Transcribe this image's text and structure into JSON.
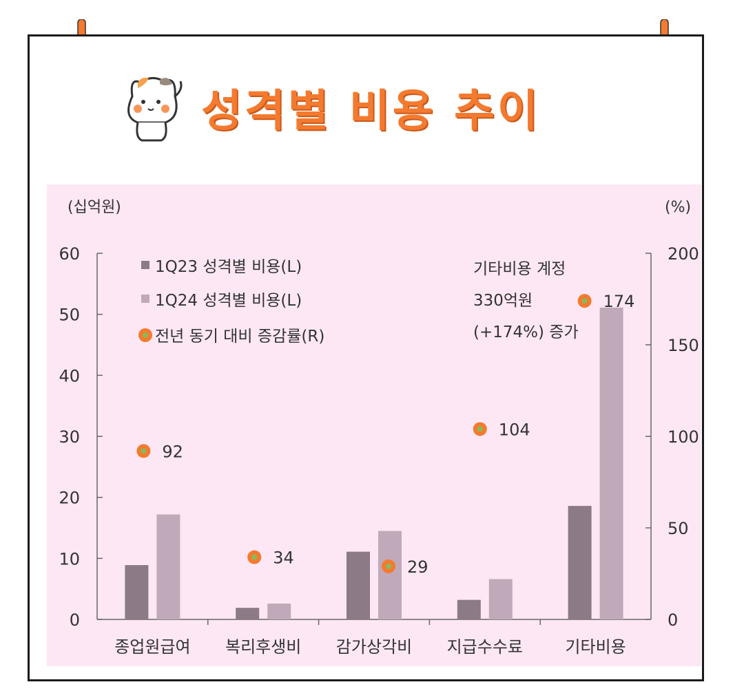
{
  "header": {
    "title": "성격별 비용 추이"
  },
  "chart_data": {
    "type": "bar",
    "categories": [
      "종업원급여",
      "복리후생비",
      "감가상각비",
      "지급수수료",
      "기타비용"
    ],
    "series": [
      {
        "name": "1Q23 성격별 비용(L)",
        "values": [
          8.9,
          1.9,
          11.1,
          3.2,
          18.6
        ],
        "color": "#8c7a86",
        "axis": "left"
      },
      {
        "name": "1Q24 성격별 비용(L)",
        "values": [
          17.2,
          2.6,
          14.5,
          6.6,
          51.1
        ],
        "color": "#c0a9b8",
        "axis": "left"
      },
      {
        "name": "전년 동기 대비 증감률(R)",
        "values": [
          92,
          34,
          29,
          104,
          174
        ],
        "type": "scatter",
        "color": "#f47a2f",
        "axis": "right"
      }
    ],
    "ylabel_left": "(십억원)",
    "ylabel_right": "(%)",
    "ylim_left": [
      0,
      60
    ],
    "yticks_left": [
      "0",
      "10",
      "20",
      "30",
      "40",
      "50",
      "60"
    ],
    "ylim_right": [
      0,
      200
    ],
    "yticks_right": [
      "0",
      "50",
      "100",
      "150",
      "200"
    ],
    "point_labels": [
      "92",
      "34",
      "29",
      "104",
      "174"
    ],
    "annotation": [
      "기타비용 계정",
      "330억원",
      "(+174%) 증가"
    ],
    "legend_position": "top-left",
    "grid": false
  }
}
